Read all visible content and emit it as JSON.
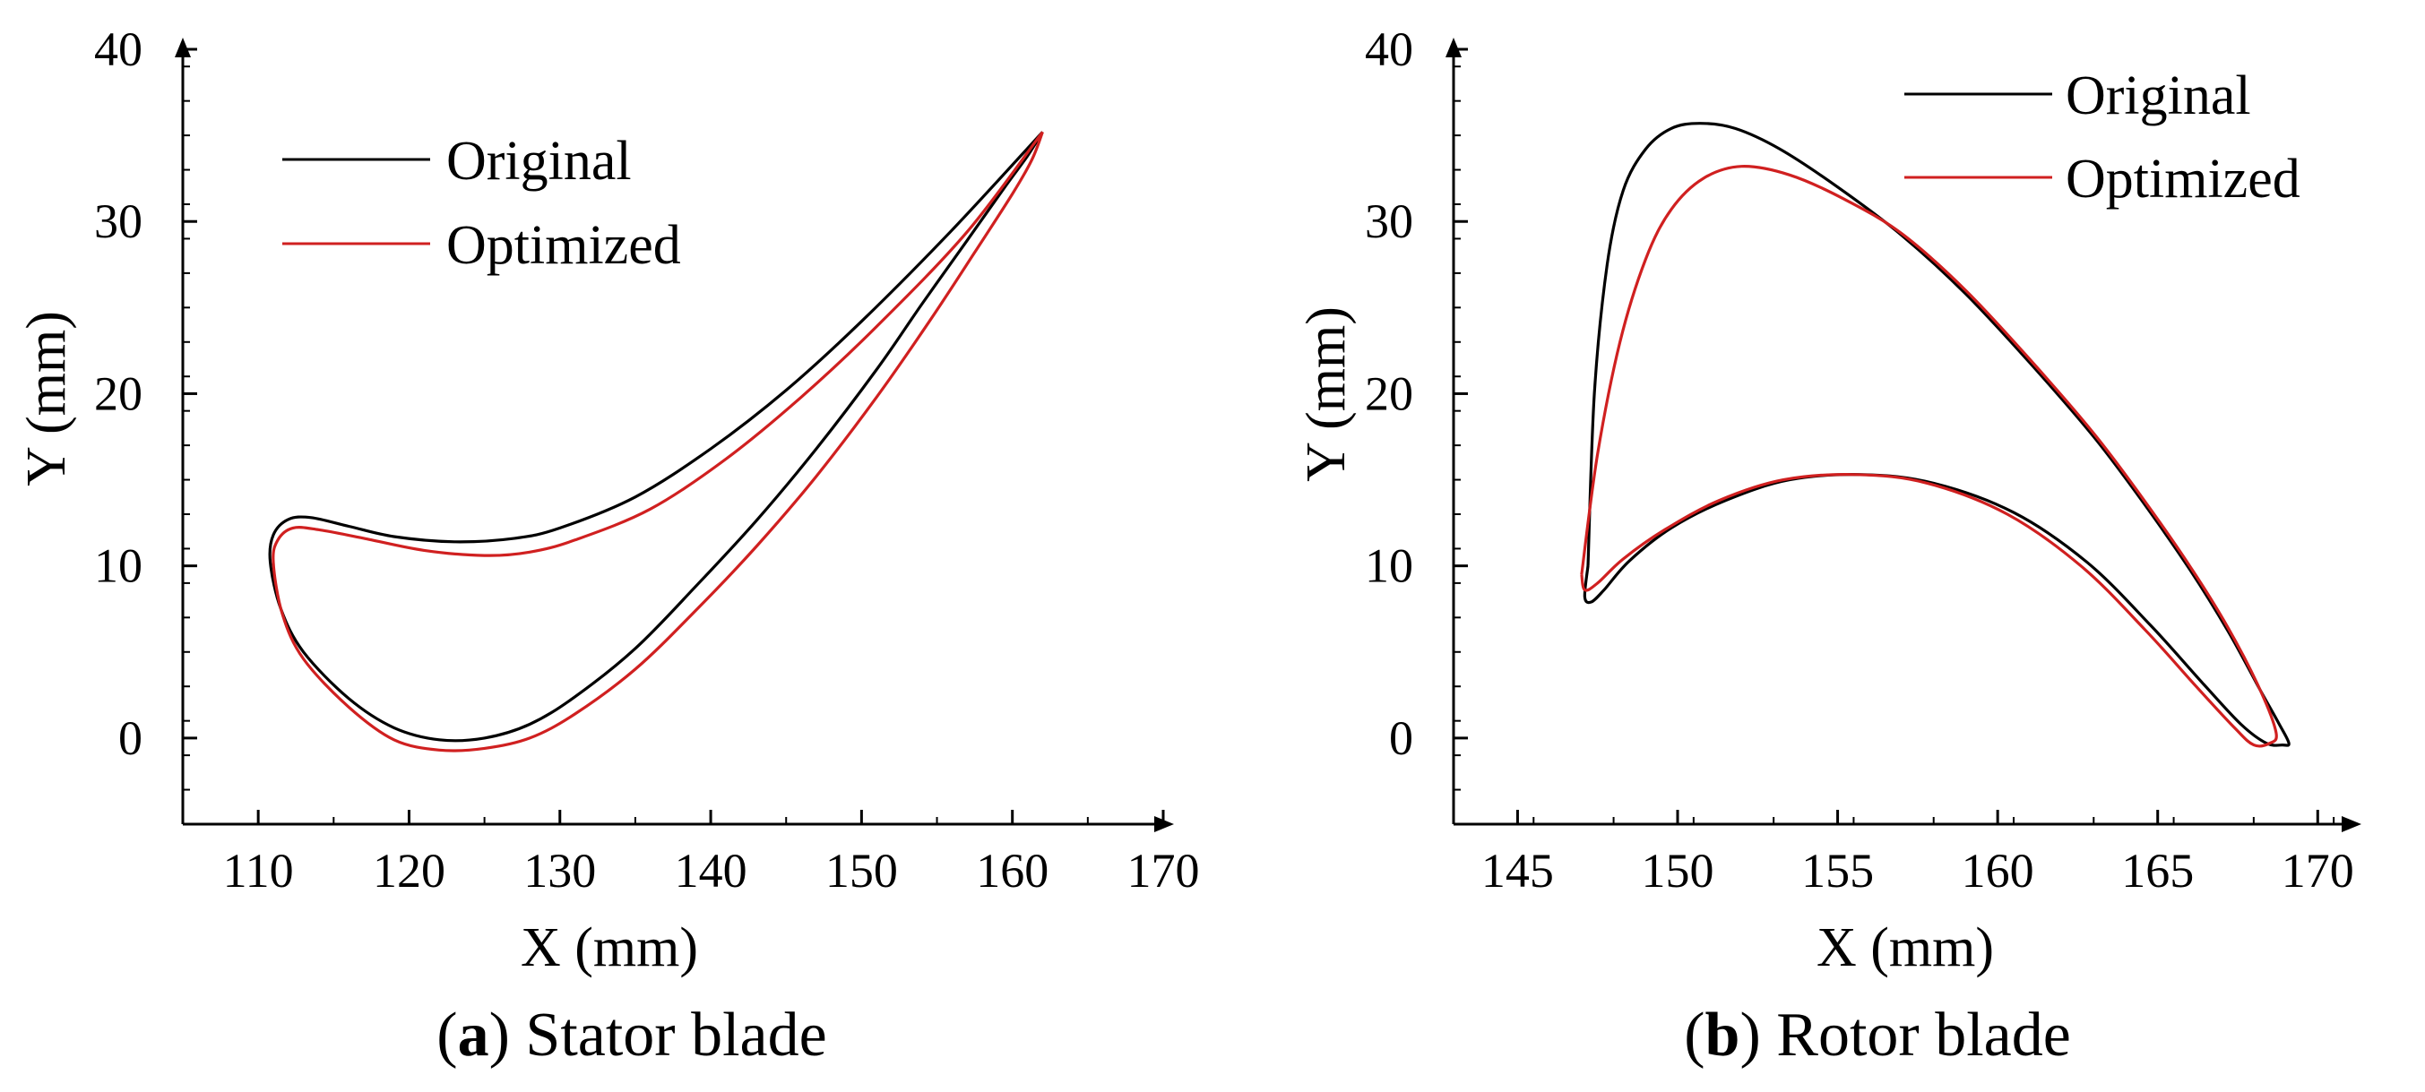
{
  "chart_data": [
    {
      "type": "line",
      "panel_letter": "a",
      "caption": "Stator blade",
      "xlabel": "X (mm)",
      "ylabel": "Y (mm)",
      "xlim": [
        105,
        170
      ],
      "ylim": [
        -5,
        40
      ],
      "xticks": [
        110,
        120,
        130,
        140,
        150,
        160,
        170
      ],
      "yticks": [
        0,
        10,
        20,
        30,
        40
      ],
      "x_minor_step": 5,
      "y_minor_step": 2,
      "legend_position": "top-left",
      "series": [
        {
          "name": "Original",
          "color": "#000000",
          "x": [
            162,
            156,
            150,
            145,
            140,
            135,
            130,
            127,
            123,
            119,
            116,
            113.5,
            112,
            111,
            110.8,
            111.5,
            113,
            116,
            119,
            122,
            125,
            128,
            131,
            135,
            139,
            143,
            147,
            151,
            154,
            157,
            159.5,
            161,
            162
          ],
          "y": [
            35.2,
            29.5,
            24.2,
            20.2,
            16.8,
            14,
            12.2,
            11.6,
            11.4,
            11.7,
            12.3,
            12.8,
            12.7,
            11.8,
            10.2,
            7.5,
            5,
            2.3,
            0.6,
            -0.1,
            0,
            0.8,
            2.4,
            5.2,
            8.8,
            12.6,
            16.8,
            21.4,
            25.2,
            28.9,
            32,
            33.8,
            35.2
          ]
        },
        {
          "name": "Optimized",
          "color": "#d02020",
          "x": [
            162,
            157,
            151,
            146,
            141,
            136,
            131,
            128,
            125,
            121,
            117,
            114,
            112.3,
            111.3,
            111,
            111.6,
            113,
            116,
            119,
            122,
            125,
            128,
            131,
            135,
            139,
            143,
            147,
            151,
            154.5,
            157.5,
            160,
            161.3,
            162
          ],
          "y": [
            35.2,
            29.4,
            23.9,
            19.8,
            16.2,
            13.3,
            11.5,
            10.8,
            10.6,
            10.9,
            11.6,
            12.1,
            12.2,
            11.5,
            10.2,
            7.2,
            4.6,
            1.8,
            -0.1,
            -0.7,
            -0.6,
            0,
            1.4,
            4,
            7.4,
            11.1,
            15.2,
            19.8,
            24.2,
            28.2,
            31.6,
            33.6,
            35.2
          ]
        }
      ]
    },
    {
      "type": "line",
      "panel_letter": "b",
      "caption": "Rotor blade",
      "xlabel": "X (mm)",
      "ylabel": "Y (mm)",
      "xlim": [
        143,
        171
      ],
      "ylim": [
        -5,
        40
      ],
      "xticks": [
        145,
        150,
        155,
        160,
        165,
        170
      ],
      "yticks": [
        0,
        10,
        20,
        30,
        40
      ],
      "x_minor_step": 2.5,
      "y_minor_step": 2,
      "legend_position": "top-right",
      "series": [
        {
          "name": "Original",
          "color": "#000000",
          "x": [
            147.2,
            147.4,
            147.8,
            148.3,
            149,
            149.8,
            150.7,
            151.8,
            153.2,
            155,
            157,
            159,
            161,
            163,
            164.5,
            166,
            167.2,
            168.2,
            168.8,
            169.1,
            168.9,
            168.4,
            167.6,
            166.4,
            164.8,
            162.8,
            160.5,
            158,
            155.8,
            153.5,
            151.5,
            149.8,
            148.5,
            147.7,
            147.3,
            147.1,
            147.2
          ],
          "y": [
            10,
            20,
            27.5,
            31.8,
            34.2,
            35.4,
            35.7,
            35.4,
            34.2,
            32,
            29.2,
            25.8,
            21.8,
            17.5,
            13.8,
            9.8,
            6.2,
            2.8,
            0.8,
            -0.3,
            -0.4,
            -0.3,
            0.8,
            3.2,
            6.5,
            10.2,
            13.1,
            14.8,
            15.3,
            15,
            13.8,
            12.2,
            10.3,
            8.6,
            7.9,
            8.2,
            10
          ]
        },
        {
          "name": "Optimized",
          "color": "#d02020",
          "x": [
            147,
            147.5,
            148.2,
            149,
            149.8,
            150.8,
            152,
            153.5,
            155.2,
            157,
            159,
            161,
            163,
            164.5,
            166,
            167.2,
            168.2,
            168.7,
            168.5,
            168,
            167.4,
            166.2,
            164.6,
            162.6,
            160.3,
            157.8,
            155.6,
            153.3,
            151.3,
            149.6,
            148.3,
            147.5,
            147.1,
            147
          ],
          "y": [
            9.5,
            16.5,
            23,
            27.8,
            30.7,
            32.5,
            33.2,
            32.7,
            31.3,
            29.3,
            26,
            22,
            17.7,
            14,
            10,
            6.4,
            2.8,
            0.3,
            -0.3,
            -0.4,
            0.6,
            3,
            6.3,
            10,
            13,
            14.8,
            15.3,
            15,
            13.8,
            12.1,
            10.4,
            9,
            8.6,
            9.5
          ]
        }
      ]
    }
  ]
}
